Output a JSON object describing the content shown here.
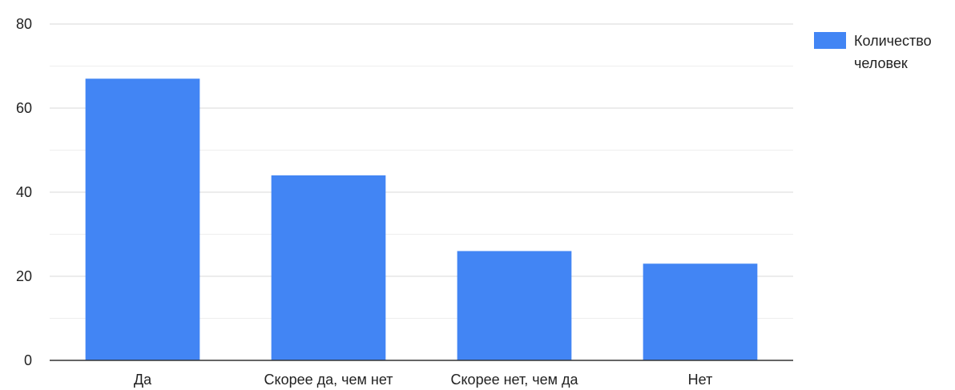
{
  "chart_data": {
    "type": "bar",
    "title": "",
    "xlabel": "",
    "ylabel": "",
    "categories": [
      "Да",
      "Скорее да, чем нет",
      "Скорее нет, чем да",
      "Нет"
    ],
    "series": [
      {
        "name": "Количество человек",
        "values": [
          67,
          44,
          26,
          23
        ]
      }
    ],
    "ylim": [
      0,
      80
    ],
    "yticks": [
      "0",
      "20",
      "40",
      "60",
      "80"
    ],
    "grid": true,
    "legend_position": "right",
    "legend_lines": [
      "Количество",
      "человек"
    ],
    "colors": {
      "bar": "#4285f4",
      "grid_major": "#d9d9d9",
      "grid_minor": "#eeeeee",
      "axis": "#333333"
    }
  }
}
